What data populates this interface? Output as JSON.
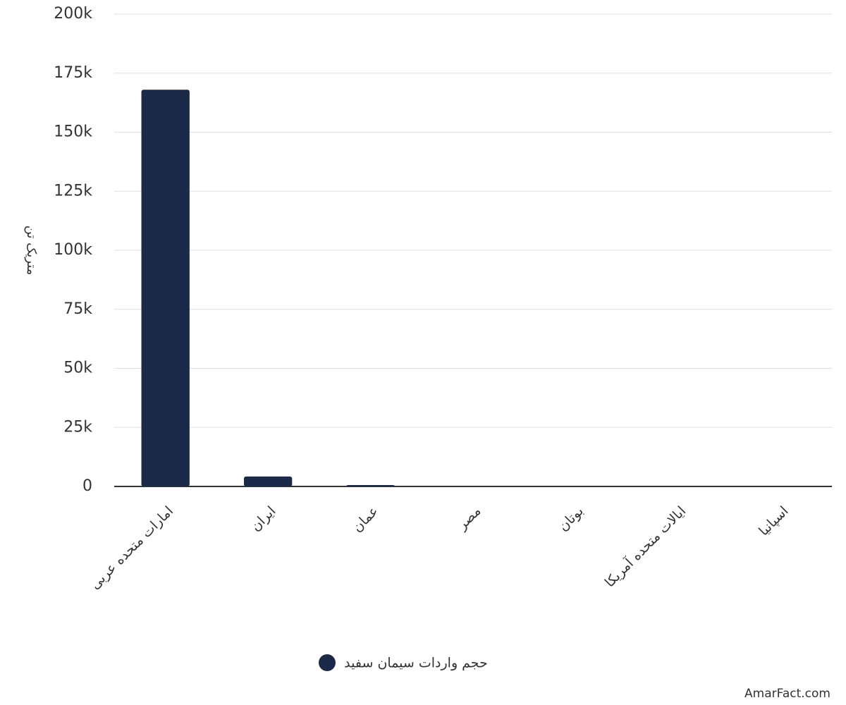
{
  "chart_data": {
    "type": "bar",
    "y_label": "متریک تن",
    "categories": [
      "امارات متحده عربی",
      "ایران",
      "عمان",
      "مصر",
      "بوتان",
      "ایالات متحده آمریکا",
      "اسپانیا"
    ],
    "series": [
      {
        "name": "حجم واردات سیمان سفید",
        "color": "#1c2a4a",
        "values": [
          168000,
          4200,
          600,
          0,
          0,
          0,
          0
        ]
      }
    ],
    "ylim": [
      0,
      200000
    ],
    "yticks": [
      0,
      {
        "value": 25000,
        "label": "25k"
      },
      {
        "value": 50000,
        "label": "50k"
      },
      {
        "value": 75000,
        "label": "75k"
      },
      {
        "value": 100000,
        "label": "100k"
      },
      {
        "value": 125000,
        "label": "125k"
      },
      {
        "value": 150000,
        "label": "150k"
      },
      {
        "value": 175000,
        "label": "175k"
      },
      {
        "value": 200000,
        "label": "200k"
      }
    ],
    "grid": true
  },
  "watermark": "AmarFact.com"
}
